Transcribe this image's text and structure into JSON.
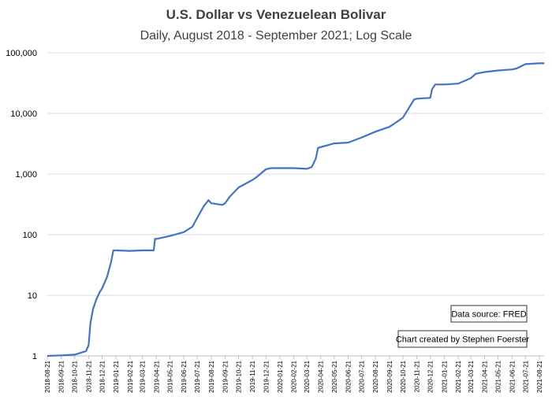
{
  "chart_data": {
    "type": "line",
    "title": "U.S. Dollar vs Venezuelean Bolivar",
    "subtitle": "Daily, August 2018 - September 2021; Log Scale",
    "xlabel": "",
    "ylabel": "",
    "yscale": "log",
    "ylim": [
      1,
      100000
    ],
    "y_ticks": [
      "1",
      "10",
      "100",
      "1,000",
      "10,000",
      "100,000"
    ],
    "x_ticks": [
      "2018-08-21",
      "2018-09-21",
      "2018-10-21",
      "2018-11-21",
      "2018-12-21",
      "2019-01-21",
      "2019-02-21",
      "2019-03-21",
      "2019-04-21",
      "2019-05-21",
      "2019-06-21",
      "2019-07-21",
      "2019-08-21",
      "2019-09-21",
      "2019-10-21",
      "2019-11-21",
      "2019-12-21",
      "2020-01-21",
      "2020-02-21",
      "2020-03-21",
      "2020-04-21",
      "2020-05-21",
      "2020-06-21",
      "2020-07-21",
      "2020-08-21",
      "2020-09-21",
      "2020-10-21",
      "2020-11-21",
      "2020-12-21",
      "2021-01-21",
      "2021-02-21",
      "2021-03-21",
      "2021-04-21",
      "2021-05-21",
      "2021-06-21",
      "2021-07-21",
      "2021-08-21"
    ],
    "grid": "horizontal",
    "legend": "none",
    "color": "#4472c4",
    "series": [
      {
        "x": [
          "2018-08-21",
          "2018-09-21",
          "2018-10-21",
          "2018-11-15",
          "2018-11-21",
          "2018-11-25",
          "2018-12-01",
          "2018-12-08",
          "2018-12-15",
          "2018-12-21",
          "2019-01-01",
          "2019-01-10",
          "2019-01-15",
          "2019-01-17",
          "2019-01-21",
          "2019-02-21",
          "2019-03-21",
          "2019-04-15",
          "2019-04-18",
          "2019-04-21",
          "2019-05-21",
          "2019-06-21",
          "2019-07-10",
          "2019-07-21",
          "2019-08-05",
          "2019-08-15",
          "2019-08-21",
          "2019-09-01",
          "2019-09-15",
          "2019-09-21",
          "2019-10-01",
          "2019-10-21",
          "2019-11-21",
          "2019-12-01",
          "2019-12-21",
          "2020-01-01",
          "2020-01-21",
          "2020-02-21",
          "2020-03-21",
          "2020-04-01",
          "2020-04-10",
          "2020-04-15",
          "2020-05-21",
          "2020-06-21",
          "2020-07-21",
          "2020-08-21",
          "2020-09-21",
          "2020-10-01",
          "2020-10-21",
          "2020-11-01",
          "2020-11-15",
          "2020-11-21",
          "2020-12-21",
          "2020-12-25",
          "2021-01-01",
          "2021-01-21",
          "2021-02-21",
          "2021-03-21",
          "2021-04-01",
          "2021-04-21",
          "2021-05-21",
          "2021-06-21",
          "2021-07-01",
          "2021-07-21",
          "2021-08-21",
          "2021-09-01"
        ],
        "y": [
          1,
          1.02,
          1.05,
          1.2,
          1.5,
          3.5,
          6,
          8.5,
          11,
          13,
          20,
          35,
          55,
          55,
          55,
          54,
          55,
          55,
          85,
          85,
          95,
          110,
          135,
          190,
          300,
          370,
          330,
          320,
          310,
          330,
          420,
          600,
          800,
          900,
          1200,
          1250,
          1250,
          1250,
          1220,
          1300,
          1800,
          2700,
          3200,
          3300,
          4000,
          5000,
          6000,
          6700,
          8500,
          11500,
          17000,
          17500,
          18000,
          25000,
          30000,
          30000,
          31000,
          38000,
          45000,
          48000,
          51000,
          53000,
          55000,
          65000,
          67000,
          67000
        ]
      }
    ],
    "annotations": [
      "Data source: FRED",
      "Chart created by Stephen Foerster"
    ]
  }
}
